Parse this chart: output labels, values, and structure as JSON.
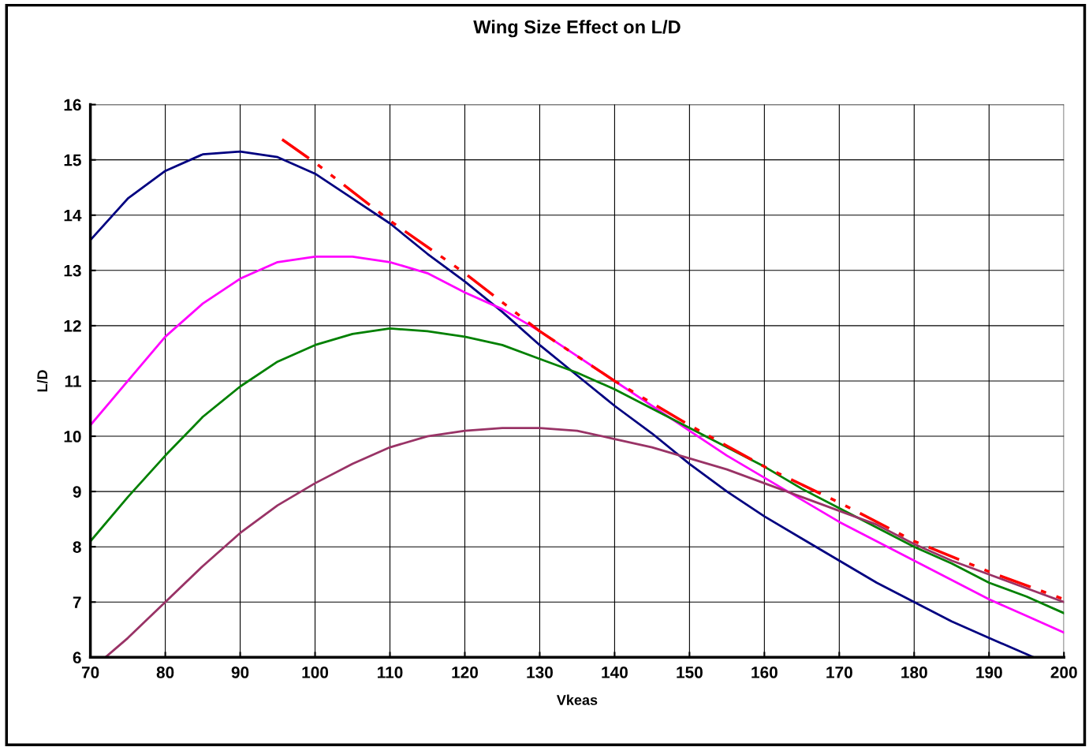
{
  "chart_data": {
    "type": "line",
    "title": "Wing Size Effect on L/D",
    "xlabel": "Vkeas",
    "ylabel": "L/D",
    "xlim": [
      70,
      200
    ],
    "xticks": [
      70,
      80,
      90,
      100,
      110,
      120,
      130,
      140,
      150,
      160,
      170,
      180,
      190,
      200
    ],
    "ylim": [
      6,
      16
    ],
    "yticks": [
      6,
      7,
      8,
      9,
      10,
      11,
      12,
      13,
      14,
      15,
      16
    ],
    "grid": true,
    "legend": false,
    "marker": "none",
    "series": [
      {
        "color": "#000080",
        "x": [
          70,
          75,
          80,
          85,
          90,
          95,
          100,
          105,
          110,
          115,
          120,
          125,
          130,
          135,
          140,
          145,
          150,
          155,
          160,
          165,
          170,
          175,
          180,
          185,
          190,
          196
        ],
        "values": [
          13.55,
          14.3,
          14.8,
          15.1,
          15.15,
          15.05,
          14.75,
          14.3,
          13.85,
          13.3,
          12.8,
          12.25,
          11.65,
          11.1,
          10.55,
          10.05,
          9.5,
          9.0,
          8.55,
          8.15,
          7.75,
          7.35,
          7.0,
          6.65,
          6.35,
          6.0
        ]
      },
      {
        "color": "#ff00ff",
        "x": [
          70,
          75,
          80,
          85,
          90,
          95,
          100,
          105,
          110,
          115,
          120,
          125,
          130,
          135,
          140,
          145,
          150,
          155,
          160,
          165,
          170,
          175,
          180,
          185,
          190,
          195,
          200
        ],
        "values": [
          10.2,
          11.0,
          11.8,
          12.4,
          12.85,
          13.15,
          13.25,
          13.25,
          13.15,
          12.95,
          12.6,
          12.3,
          11.9,
          11.45,
          11.0,
          10.55,
          10.1,
          9.65,
          9.25,
          8.85,
          8.45,
          8.1,
          7.75,
          7.4,
          7.05,
          6.75,
          6.45
        ]
      },
      {
        "color": "#008000",
        "x": [
          70,
          75,
          80,
          85,
          90,
          95,
          100,
          105,
          110,
          115,
          120,
          125,
          130,
          135,
          140,
          145,
          150,
          155,
          160,
          165,
          170,
          175,
          180,
          185,
          190,
          195,
          200
        ],
        "values": [
          8.1,
          8.9,
          9.65,
          10.35,
          10.9,
          11.35,
          11.65,
          11.85,
          11.95,
          11.9,
          11.8,
          11.65,
          11.4,
          11.15,
          10.85,
          10.5,
          10.15,
          9.8,
          9.45,
          9.05,
          8.7,
          8.35,
          8.0,
          7.7,
          7.35,
          7.1,
          6.8
        ]
      },
      {
        "color": "#993366",
        "x": [
          72,
          75,
          80,
          85,
          90,
          95,
          100,
          105,
          110,
          115,
          120,
          125,
          130,
          135,
          140,
          145,
          150,
          155,
          160,
          165,
          170,
          175,
          180,
          185,
          190,
          195,
          200
        ],
        "values": [
          6.0,
          6.35,
          7.0,
          7.65,
          8.25,
          8.75,
          9.15,
          9.5,
          9.8,
          10.0,
          10.1,
          10.15,
          10.15,
          10.1,
          9.95,
          9.8,
          9.6,
          9.4,
          9.15,
          8.9,
          8.65,
          8.4,
          8.05,
          7.75,
          7.5,
          7.25,
          7.0
        ]
      },
      {
        "color": "#ff0000",
        "line_style": "dashed",
        "x": [
          95.6,
          100,
          110,
          120,
          130,
          140,
          150,
          160,
          170,
          180,
          190,
          200
        ],
        "values": [
          15.37,
          14.95,
          13.9,
          12.95,
          11.9,
          11.0,
          10.2,
          9.45,
          8.8,
          8.1,
          7.55,
          7.05
        ]
      }
    ]
  }
}
